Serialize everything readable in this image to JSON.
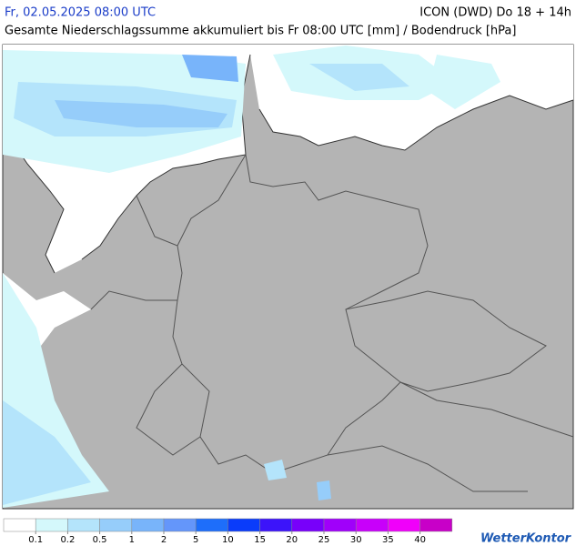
{
  "header": {
    "datetime": "Fr, 02.05.2025 08:00 UTC",
    "model": "ICON (DWD) Do 18 + 14h",
    "subtitle": "Gesamte Niederschlagssumme akkumuliert bis Fr 08:00 UTC [mm] / Bodendruck [hPa]"
  },
  "legend": {
    "colors": [
      "#ffffff",
      "#d4f8fb",
      "#b4e4fb",
      "#96cdfa",
      "#78b4fa",
      "#6496fa",
      "#1e6efa",
      "#0a3cfa",
      "#3c14fa",
      "#7800fa",
      "#a000fa",
      "#c800fa",
      "#f000fa",
      "#c800c8"
    ],
    "ticks": [
      0.1,
      0.2,
      0.5,
      1,
      2,
      5,
      10,
      15,
      20,
      25,
      30,
      35,
      40
    ]
  },
  "logo": "WetterKontor"
}
